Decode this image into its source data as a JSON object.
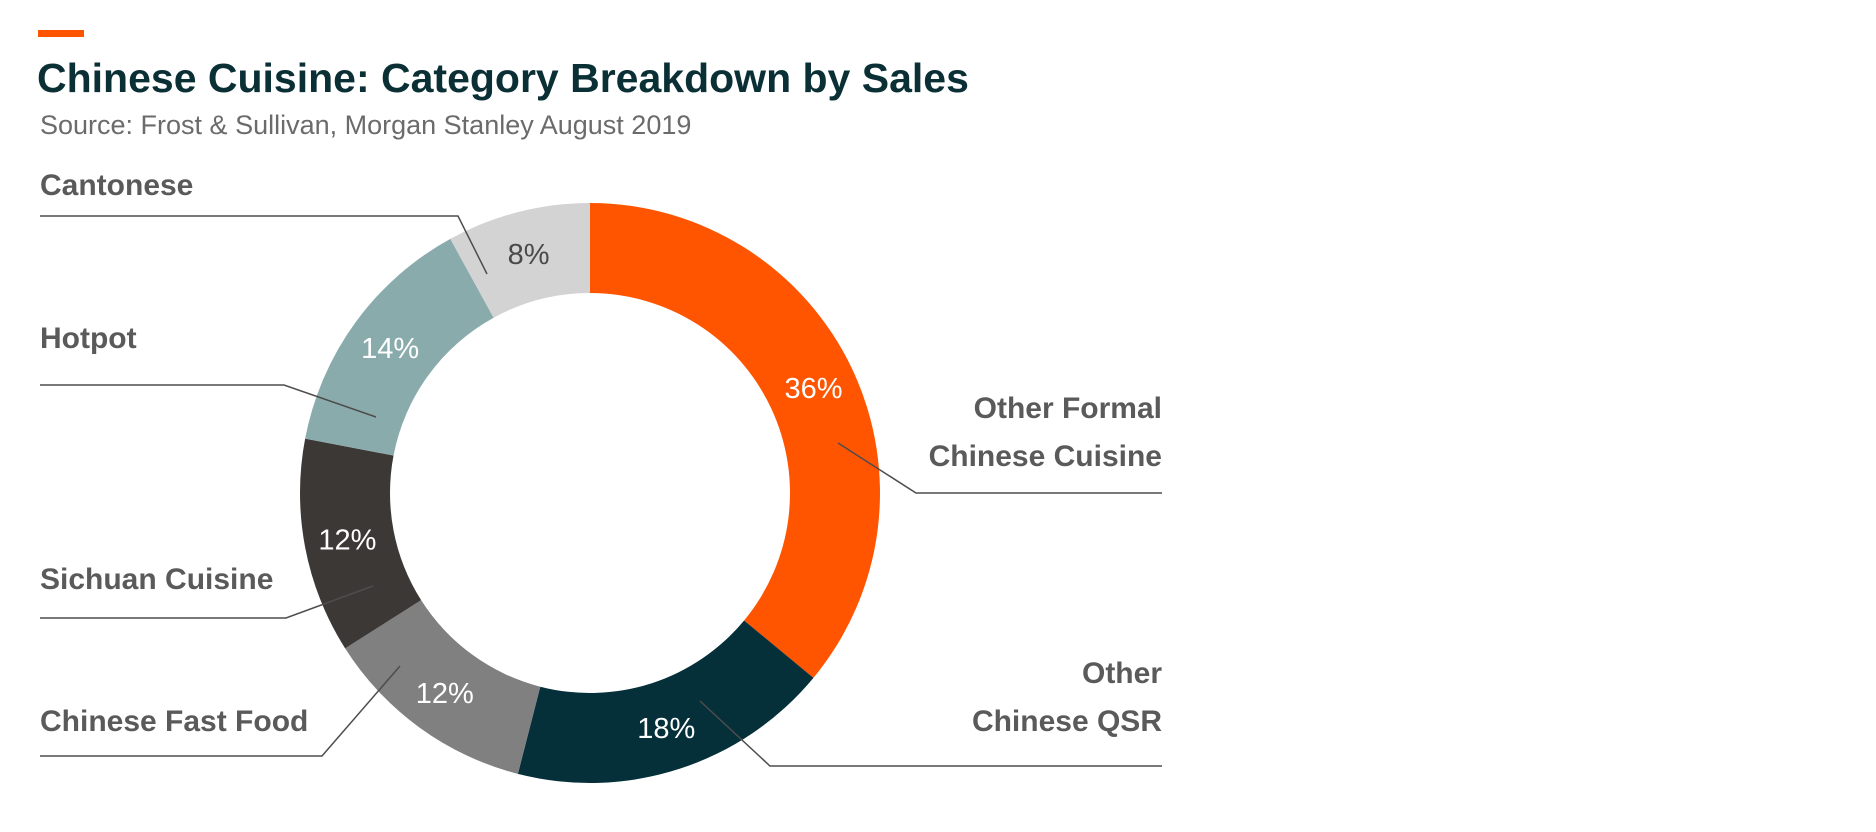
{
  "header": {
    "accent_color": "#ff5500",
    "title": "Chinese Cuisine: Category Breakdown by Sales",
    "subtitle": "Source: Frost & Sullivan, Morgan Stanley August 2019"
  },
  "chart_data": {
    "type": "pie",
    "style": "donut",
    "title": "Chinese Cuisine: Category Breakdown by Sales",
    "subtitle": "Source: Frost & Sullivan, Morgan Stanley August 2019",
    "unit": "%",
    "slices": [
      {
        "label": [
          "Other Formal",
          "Chinese Cuisine"
        ],
        "value": 36,
        "data_label": "36%",
        "color": "#ff5500",
        "label_color": "#ffffff"
      },
      {
        "label": [
          "Other",
          "Chinese QSR"
        ],
        "value": 18,
        "data_label": "18%",
        "color": "#05303a",
        "label_color": "#ffffff"
      },
      {
        "label": [
          "Chinese Fast Food"
        ],
        "value": 12,
        "data_label": "12%",
        "color": "#808080",
        "label_color": "#ffffff"
      },
      {
        "label": [
          "Sichuan Cuisine"
        ],
        "value": 12,
        "data_label": "12%",
        "color": "#3c3836",
        "label_color": "#ffffff"
      },
      {
        "label": [
          "Hotpot"
        ],
        "value": 14,
        "data_label": "14%",
        "color": "#8aabac",
        "label_color": "#ffffff"
      },
      {
        "label": [
          "Cantonese"
        ],
        "value": 8,
        "data_label": "8%",
        "color": "#d3d3d3",
        "label_color": "#4a4a4a"
      }
    ],
    "legend": "none",
    "label_style": "callout lines"
  }
}
